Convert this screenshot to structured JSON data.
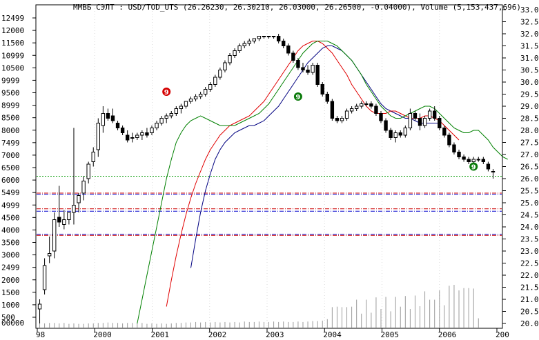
{
  "window": {
    "title": "ММВБ СЭЛТ : USD/TOD_UTS (26.26230, 26.30210, 26.03000, 26.26500, -0.04000), Volume (5,153,437,696)"
  },
  "chart_data": {
    "type": "candlestick",
    "symbol": "USD/TOD_UTS",
    "title": "ММВБ СЭЛТ : USD/TOD_UTS (26.26230, 26.30210, 26.03000, 26.26500, -0.04000), Volume (5,153,437,696)",
    "left_axis": {
      "ticks": [
        "12499",
        "12000",
        "11500",
        "10999",
        "10500",
        "9999",
        "9500",
        "8999",
        "8500",
        "8000",
        "7499",
        "7000",
        "6500",
        "6000",
        "5499",
        "4999",
        "4500",
        "4000",
        "3500",
        "3000",
        "2499",
        "2000",
        "1500",
        "1000",
        "500"
      ],
      "corner_label": "00000"
    },
    "right_axis": {
      "ticks": [
        "33.0",
        "32.5",
        "32.0",
        "31.5",
        "31.0",
        "30.5",
        "30.0",
        "29.5",
        "29.0",
        "28.5",
        "28.0",
        "27.5",
        "27.0",
        "26.5",
        "26.0",
        "25.5",
        "25.0",
        "24.5",
        "24.0",
        "23.5",
        "23.0",
        "22.5",
        "22.0",
        "21.5",
        "21.0",
        "20.5",
        "20.0"
      ],
      "ylim": [
        20.0,
        33.0
      ]
    },
    "x_axis": {
      "ticks": [
        "98",
        "2000",
        "2001",
        "2002",
        "2003",
        "2004",
        "2005",
        "2006",
        "200"
      ]
    },
    "candles": [
      {
        "o": 20.6,
        "h": 21.0,
        "l": 20.0,
        "c": 20.8
      },
      {
        "o": 21.4,
        "h": 22.7,
        "l": 21.2,
        "c": 22.4
      },
      {
        "o": 22.8,
        "h": 23.6,
        "l": 22.5,
        "c": 22.9
      },
      {
        "o": 23.0,
        "h": 24.6,
        "l": 22.7,
        "c": 24.3
      },
      {
        "o": 24.4,
        "h": 25.7,
        "l": 24.0,
        "c": 24.2
      },
      {
        "o": 24.1,
        "h": 24.7,
        "l": 23.9,
        "c": 24.3
      },
      {
        "o": 24.3,
        "h": 24.6,
        "l": 24.1,
        "c": 24.6
      },
      {
        "o": 24.6,
        "h": 28.1,
        "l": 24.1,
        "c": 24.9
      },
      {
        "o": 25.0,
        "h": 25.4,
        "l": 24.6,
        "c": 25.3
      },
      {
        "o": 25.4,
        "h": 26.1,
        "l": 25.1,
        "c": 25.9
      },
      {
        "o": 26.0,
        "h": 26.7,
        "l": 25.8,
        "c": 26.6
      },
      {
        "o": 26.7,
        "h": 27.3,
        "l": 26.5,
        "c": 27.1
      },
      {
        "o": 27.2,
        "h": 28.5,
        "l": 26.9,
        "c": 28.3
      },
      {
        "o": 28.2,
        "h": 29.0,
        "l": 27.9,
        "c": 28.7
      },
      {
        "o": 28.7,
        "h": 28.9,
        "l": 28.4,
        "c": 28.5
      },
      {
        "o": 28.6,
        "h": 28.9,
        "l": 28.3,
        "c": 28.4
      },
      {
        "o": 28.3,
        "h": 28.4,
        "l": 28.0,
        "c": 28.1
      },
      {
        "o": 28.1,
        "h": 28.2,
        "l": 27.8,
        "c": 27.9
      },
      {
        "o": 27.8,
        "h": 28.0,
        "l": 27.5,
        "c": 27.6
      },
      {
        "o": 27.7,
        "h": 27.9,
        "l": 27.5,
        "c": 27.7
      },
      {
        "o": 27.7,
        "h": 27.9,
        "l": 27.6,
        "c": 27.8
      },
      {
        "o": 27.8,
        "h": 28.0,
        "l": 27.6,
        "c": 27.9
      },
      {
        "o": 27.9,
        "h": 28.1,
        "l": 27.7,
        "c": 27.8
      },
      {
        "o": 27.9,
        "h": 28.2,
        "l": 27.8,
        "c": 28.1
      },
      {
        "o": 28.1,
        "h": 28.4,
        "l": 28.0,
        "c": 28.3
      },
      {
        "o": 28.3,
        "h": 28.6,
        "l": 28.2,
        "c": 28.5
      },
      {
        "o": 28.5,
        "h": 28.7,
        "l": 28.3,
        "c": 28.6
      },
      {
        "o": 28.6,
        "h": 28.8,
        "l": 28.5,
        "c": 28.7
      },
      {
        "o": 28.7,
        "h": 29.0,
        "l": 28.6,
        "c": 28.9
      },
      {
        "o": 28.9,
        "h": 29.1,
        "l": 28.7,
        "c": 29.0
      },
      {
        "o": 29.0,
        "h": 29.2,
        "l": 28.9,
        "c": 29.2
      },
      {
        "o": 29.2,
        "h": 29.4,
        "l": 29.1,
        "c": 29.3
      },
      {
        "o": 29.3,
        "h": 29.5,
        "l": 29.2,
        "c": 29.4
      },
      {
        "o": 29.4,
        "h": 29.6,
        "l": 29.3,
        "c": 29.5
      },
      {
        "o": 29.5,
        "h": 29.8,
        "l": 29.4,
        "c": 29.7
      },
      {
        "o": 29.7,
        "h": 30.0,
        "l": 29.6,
        "c": 29.9
      },
      {
        "o": 29.9,
        "h": 30.3,
        "l": 29.8,
        "c": 30.2
      },
      {
        "o": 30.2,
        "h": 30.6,
        "l": 30.1,
        "c": 30.5
      },
      {
        "o": 30.5,
        "h": 30.9,
        "l": 30.4,
        "c": 30.8
      },
      {
        "o": 30.8,
        "h": 31.2,
        "l": 30.7,
        "c": 31.1
      },
      {
        "o": 31.1,
        "h": 31.4,
        "l": 31.0,
        "c": 31.3
      },
      {
        "o": 31.3,
        "h": 31.6,
        "l": 31.2,
        "c": 31.5
      },
      {
        "o": 31.5,
        "h": 31.7,
        "l": 31.4,
        "c": 31.6
      },
      {
        "o": 31.6,
        "h": 31.8,
        "l": 31.5,
        "c": 31.7
      },
      {
        "o": 31.7,
        "h": 31.8,
        "l": 31.6,
        "c": 31.8
      },
      {
        "o": 31.8,
        "h": 31.9,
        "l": 31.7,
        "c": 31.9
      },
      {
        "o": 31.9,
        "h": 31.9,
        "l": 31.8,
        "c": 31.9
      },
      {
        "o": 31.9,
        "h": 31.9,
        "l": 31.8,
        "c": 31.9
      },
      {
        "o": 31.9,
        "h": 31.9,
        "l": 31.8,
        "c": 31.9
      },
      {
        "o": 31.9,
        "h": 32.0,
        "l": 31.6,
        "c": 31.7
      },
      {
        "o": 31.7,
        "h": 31.8,
        "l": 31.4,
        "c": 31.5
      },
      {
        "o": 31.5,
        "h": 31.6,
        "l": 31.1,
        "c": 31.2
      },
      {
        "o": 31.2,
        "h": 31.3,
        "l": 30.8,
        "c": 30.9
      },
      {
        "o": 30.9,
        "h": 31.0,
        "l": 30.5,
        "c": 30.6
      },
      {
        "o": 30.6,
        "h": 30.8,
        "l": 30.4,
        "c": 30.5
      },
      {
        "o": 30.5,
        "h": 30.7,
        "l": 30.3,
        "c": 30.4
      },
      {
        "o": 30.4,
        "h": 30.8,
        "l": 30.3,
        "c": 30.7
      },
      {
        "o": 30.7,
        "h": 30.8,
        "l": 29.8,
        "c": 29.9
      },
      {
        "o": 29.9,
        "h": 30.0,
        "l": 29.4,
        "c": 29.5
      },
      {
        "o": 29.5,
        "h": 29.6,
        "l": 29.1,
        "c": 29.2
      },
      {
        "o": 29.2,
        "h": 29.3,
        "l": 28.4,
        "c": 28.5
      },
      {
        "o": 28.5,
        "h": 28.6,
        "l": 28.3,
        "c": 28.4
      },
      {
        "o": 28.4,
        "h": 28.6,
        "l": 28.3,
        "c": 28.5
      },
      {
        "o": 28.5,
        "h": 28.9,
        "l": 28.4,
        "c": 28.8
      },
      {
        "o": 28.8,
        "h": 29.0,
        "l": 28.7,
        "c": 28.9
      },
      {
        "o": 28.9,
        "h": 29.1,
        "l": 28.8,
        "c": 29.0
      },
      {
        "o": 29.0,
        "h": 29.2,
        "l": 28.9,
        "c": 29.1
      },
      {
        "o": 29.1,
        "h": 29.2,
        "l": 29.0,
        "c": 29.1
      },
      {
        "o": 29.1,
        "h": 29.2,
        "l": 28.9,
        "c": 29.0
      },
      {
        "o": 29.0,
        "h": 29.1,
        "l": 28.6,
        "c": 28.7
      },
      {
        "o": 28.7,
        "h": 28.8,
        "l": 28.3,
        "c": 28.4
      },
      {
        "o": 28.4,
        "h": 28.5,
        "l": 27.9,
        "c": 28.0
      },
      {
        "o": 28.0,
        "h": 28.1,
        "l": 27.6,
        "c": 27.7
      },
      {
        "o": 27.7,
        "h": 28.0,
        "l": 27.5,
        "c": 27.9
      },
      {
        "o": 27.9,
        "h": 28.0,
        "l": 27.7,
        "c": 27.8
      },
      {
        "o": 27.8,
        "h": 28.2,
        "l": 27.7,
        "c": 28.1
      },
      {
        "o": 28.1,
        "h": 28.9,
        "l": 28.0,
        "c": 28.7
      },
      {
        "o": 28.7,
        "h": 28.8,
        "l": 28.4,
        "c": 28.5
      },
      {
        "o": 28.5,
        "h": 28.7,
        "l": 28.0,
        "c": 28.2
      },
      {
        "o": 28.2,
        "h": 28.6,
        "l": 28.1,
        "c": 28.5
      },
      {
        "o": 28.5,
        "h": 28.9,
        "l": 28.4,
        "c": 28.8
      },
      {
        "o": 28.8,
        "h": 29.0,
        "l": 28.4,
        "c": 28.5
      },
      {
        "o": 28.5,
        "h": 28.6,
        "l": 28.0,
        "c": 28.1
      },
      {
        "o": 28.1,
        "h": 28.2,
        "l": 27.7,
        "c": 27.8
      },
      {
        "o": 27.8,
        "h": 27.9,
        "l": 27.3,
        "c": 27.4
      },
      {
        "o": 27.4,
        "h": 27.5,
        "l": 27.0,
        "c": 27.1
      },
      {
        "o": 27.1,
        "h": 27.2,
        "l": 26.8,
        "c": 26.9
      },
      {
        "o": 26.9,
        "h": 27.0,
        "l": 26.7,
        "c": 26.8
      },
      {
        "o": 26.8,
        "h": 26.9,
        "l": 26.6,
        "c": 26.7
      },
      {
        "o": 26.7,
        "h": 26.9,
        "l": 26.6,
        "c": 26.8
      },
      {
        "o": 26.8,
        "h": 26.9,
        "l": 26.7,
        "c": 26.8
      },
      {
        "o": 26.8,
        "h": 26.9,
        "l": 26.6,
        "c": 26.7
      },
      {
        "o": 26.6,
        "h": 26.7,
        "l": 26.3,
        "c": 26.4
      },
      {
        "o": 26.3,
        "h": 26.4,
        "l": 26.0,
        "c": 26.3
      }
    ],
    "ma_fast": [
      null,
      null,
      null,
      null,
      null,
      null,
      null,
      null,
      null,
      null,
      null,
      null,
      null,
      null,
      null,
      null,
      null,
      null,
      null,
      null,
      20.0,
      21.0,
      22.0,
      23.0,
      24.0,
      25.0,
      26.0,
      26.8,
      27.5,
      27.9,
      28.2,
      28.4,
      28.5,
      28.6,
      28.5,
      28.4,
      28.3,
      28.2,
      28.2,
      28.2,
      28.2,
      28.3,
      28.4,
      28.5,
      28.6,
      28.7,
      28.9,
      29.1,
      29.4,
      29.7,
      30.0,
      30.3,
      30.6,
      30.9,
      31.2,
      31.4,
      31.6,
      31.7,
      31.7,
      31.7,
      31.6,
      31.5,
      31.3,
      31.1,
      30.9,
      30.6,
      30.3,
      29.9,
      29.6,
      29.3,
      29.0,
      28.8,
      28.6,
      28.5,
      28.5,
      28.6,
      28.7,
      28.8,
      28.9,
      29.0,
      29.0,
      28.9,
      28.7,
      28.5,
      28.3,
      28.1,
      28.0,
      27.9,
      27.9,
      28.0,
      28.0,
      27.8,
      27.6,
      27.3,
      27.1,
      26.9,
      26.8
    ],
    "ma_mid": [
      null,
      null,
      null,
      null,
      null,
      null,
      null,
      null,
      null,
      null,
      null,
      null,
      null,
      null,
      null,
      null,
      null,
      null,
      null,
      null,
      null,
      null,
      null,
      null,
      null,
      null,
      20.7,
      21.8,
      22.8,
      23.7,
      24.5,
      25.2,
      25.8,
      26.3,
      26.8,
      27.2,
      27.5,
      27.8,
      28.0,
      28.2,
      28.3,
      28.4,
      28.5,
      28.6,
      28.8,
      29.0,
      29.2,
      29.5,
      29.8,
      30.1,
      30.4,
      30.7,
      31.0,
      31.3,
      31.5,
      31.6,
      31.7,
      31.7,
      31.6,
      31.4,
      31.2,
      30.9,
      30.6,
      30.3,
      29.9,
      29.6,
      29.3,
      29.0,
      28.8,
      28.7,
      28.7,
      28.7,
      28.8,
      28.8,
      28.7,
      28.6,
      28.5,
      28.5,
      28.5,
      28.6,
      28.6,
      28.5,
      28.4,
      28.2,
      28.0,
      27.8,
      27.6
    ],
    "ma_slow": [
      null,
      null,
      null,
      null,
      null,
      null,
      null,
      null,
      null,
      null,
      null,
      null,
      null,
      null,
      null,
      null,
      null,
      null,
      null,
      null,
      null,
      null,
      null,
      null,
      null,
      null,
      null,
      null,
      null,
      null,
      null,
      22.3,
      23.5,
      24.6,
      25.5,
      26.2,
      26.8,
      27.2,
      27.5,
      27.7,
      27.9,
      28.0,
      28.1,
      28.2,
      28.2,
      28.3,
      28.4,
      28.6,
      28.8,
      29.0,
      29.3,
      29.6,
      29.9,
      30.2,
      30.5,
      30.8,
      31.0,
      31.2,
      31.4,
      31.5,
      31.5,
      31.4,
      31.3,
      31.1,
      30.9,
      30.6,
      30.3,
      30.0,
      29.7,
      29.4,
      29.1,
      28.9,
      28.8,
      28.7,
      28.6,
      28.5,
      28.5,
      28.4,
      28.3,
      28.3,
      28.3,
      28.3,
      28.3
    ],
    "horizontal_levels": [
      {
        "value": 26.1,
        "style": "dotted",
        "color": "#009900"
      },
      {
        "value": 25.4,
        "style": "dash-dot",
        "color": "#cc0000"
      },
      {
        "value": 25.35,
        "style": "dash-dot",
        "color": "#0000cc"
      },
      {
        "value": 24.75,
        "style": "dash-dot",
        "color": "#cc0000"
      },
      {
        "value": 24.65,
        "style": "dash-dot",
        "color": "#0000cc"
      },
      {
        "value": 23.7,
        "style": "dash-dot",
        "color": "#0000cc"
      },
      {
        "value": 23.65,
        "style": "dash-dot",
        "color": "#cc0000"
      }
    ],
    "signals": [
      {
        "label": "9",
        "color": "#d40000",
        "at_index": 26,
        "price": 29.6
      },
      {
        "label": "9",
        "color": "#0a7a0a",
        "at_index": 53,
        "price": 29.4
      },
      {
        "label": "9",
        "color": "#0a7a0a",
        "at_index": 89,
        "price": 26.5
      }
    ],
    "volume": [
      12,
      9,
      10,
      10,
      9,
      10,
      8,
      9,
      8,
      8,
      9,
      9,
      10,
      10,
      11,
      10,
      10,
      9,
      10,
      10,
      10,
      10,
      8,
      9,
      8,
      9,
      8,
      9,
      10,
      10,
      11,
      11,
      12,
      11,
      12,
      11,
      12,
      11,
      12,
      11,
      12,
      11,
      13,
      12,
      12,
      13,
      12,
      12,
      13,
      12,
      13,
      12,
      12,
      13,
      12,
      13,
      14,
      14,
      15,
      18,
      44,
      45,
      44,
      44,
      45,
      60,
      30,
      60,
      32,
      65,
      40,
      66,
      35,
      66,
      45,
      68,
      40,
      69,
      46,
      78,
      60,
      60,
      80,
      48,
      90,
      92,
      80,
      85,
      85,
      84,
      20
    ],
    "colors": {
      "ma_fast": "#008000",
      "ma_mid": "#e00000",
      "ma_slow": "#000080",
      "bull_body": "#ffffff",
      "bear_body": "#000000",
      "volume_bars": "#999999"
    }
  }
}
